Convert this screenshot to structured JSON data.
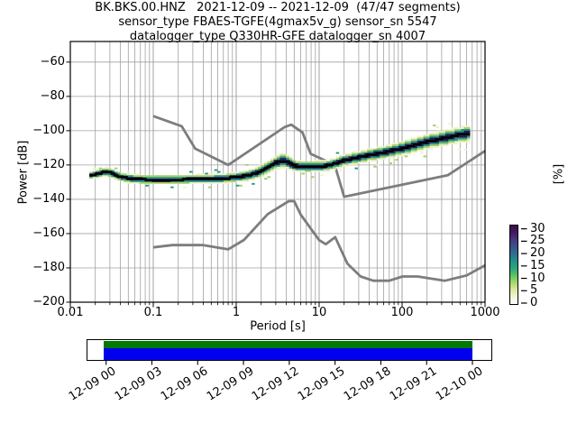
{
  "header": {
    "line1": "BK.BKS.00.HNZ   2021-12-09 -- 2021-12-09  (47/47 segments)",
    "line2": "sensor_type FBAES-TGFE(4gmax5v_g) sensor_sn 5547",
    "line3": "datalogger_type Q330HR-GFE datalogger_sn 4007"
  },
  "plot": {
    "xlabel": "Period [s]",
    "ylabel": "Power [dB]"
  },
  "colorbar": {
    "label": "[%]",
    "tick_values": [
      30,
      25,
      20,
      15,
      10,
      5,
      0
    ],
    "max_percent": 31.7,
    "gradient_bottom_to_top": [
      "#ffffff",
      "#f4f2d9",
      "#dce8a0",
      "#a5d96b",
      "#5cc362",
      "#2ba57c",
      "#21918c",
      "#2c6f8e",
      "#3a548b",
      "#453781",
      "#45195e",
      "#3c0b4e"
    ]
  },
  "timeline": {
    "labels": [
      "12-09 00",
      "12-09 03",
      "12-09 06",
      "12-09 09",
      "12-09 12",
      "12-09 15",
      "12-09 18",
      "12-09 21",
      "12-10 00"
    ],
    "coverage_color": "#007a00",
    "psd_color": "#0000ee"
  },
  "chart_data": {
    "type": "line",
    "title": "BK.BKS.00.HNZ 2021-12-09 -- 2021-12-09 (47/47 segments)",
    "xlabel": "Period [s]",
    "ylabel": "Power [dB]",
    "xscale": "log",
    "xlim": [
      0.01,
      1000
    ],
    "ylim": [
      -200,
      -48
    ],
    "grid": true,
    "grid_color": "#a0a0a0",
    "x_tick_values": [
      0.01,
      0.1,
      1,
      10,
      100,
      1000
    ],
    "x_tick_labels": [
      "0.01",
      "0.1",
      "1",
      "10",
      "100",
      "1000"
    ],
    "y_tick_values": [
      -60,
      -80,
      -100,
      -120,
      -140,
      -160,
      -180,
      -200
    ],
    "series": [
      {
        "name": "NHNM Peterson high-noise model",
        "color": "#7d7d7d",
        "points": [
          [
            0.1,
            -91.5
          ],
          [
            0.22,
            -97.4
          ],
          [
            0.32,
            -110.5
          ],
          [
            0.8,
            -120
          ],
          [
            3.8,
            -98
          ],
          [
            4.6,
            -96.5
          ],
          [
            6.3,
            -101
          ],
          [
            7.9,
            -113.5
          ],
          [
            15.4,
            -120
          ],
          [
            20,
            -138.5
          ],
          [
            354.8,
            -126
          ],
          [
            1000,
            -111.8
          ]
        ]
      },
      {
        "name": "NLNM Peterson low-noise model",
        "color": "#7d7d7d",
        "points": [
          [
            0.1,
            -168
          ],
          [
            0.17,
            -166.7
          ],
          [
            0.4,
            -166.7
          ],
          [
            0.8,
            -169.2
          ],
          [
            1.24,
            -163.7
          ],
          [
            2.4,
            -148.6
          ],
          [
            4.3,
            -141.1
          ],
          [
            5,
            -141.1
          ],
          [
            6,
            -149
          ],
          [
            10,
            -163.8
          ],
          [
            12,
            -166.2
          ],
          [
            15.6,
            -162.1
          ],
          [
            21.9,
            -177.5
          ],
          [
            31.6,
            -185
          ],
          [
            45,
            -187.5
          ],
          [
            70,
            -187.5
          ],
          [
            101,
            -185
          ],
          [
            154,
            -185
          ],
          [
            328,
            -187.5
          ],
          [
            600,
            -184.4
          ],
          [
            1000,
            -178.5
          ]
        ]
      },
      {
        "name": "PSD mode",
        "color": "#000000",
        "points": [
          [
            0.017,
            -126
          ],
          [
            0.021,
            -125.3
          ],
          [
            0.026,
            -124
          ],
          [
            0.031,
            -124.6
          ],
          [
            0.04,
            -126.8
          ],
          [
            0.05,
            -127.8
          ],
          [
            0.07,
            -128.4
          ],
          [
            0.1,
            -128.6
          ],
          [
            0.15,
            -128.6
          ],
          [
            0.22,
            -128.5
          ],
          [
            0.32,
            -128.3
          ],
          [
            0.5,
            -128.1
          ],
          [
            0.7,
            -127.9
          ],
          [
            1,
            -127.2
          ],
          [
            1.4,
            -126.1
          ],
          [
            1.8,
            -124.4
          ],
          [
            2.2,
            -122.4
          ],
          [
            2.6,
            -120.4
          ],
          [
            3,
            -118.7
          ],
          [
            3.4,
            -117.7
          ],
          [
            3.9,
            -117.7
          ],
          [
            4.4,
            -119
          ],
          [
            5,
            -120.4
          ],
          [
            6,
            -120.9
          ],
          [
            7.5,
            -121
          ],
          [
            9,
            -120.9
          ],
          [
            11,
            -120.7
          ],
          [
            13,
            -120.3
          ],
          [
            16,
            -118.9
          ],
          [
            20,
            -117.3
          ],
          [
            25,
            -116.3
          ],
          [
            32,
            -115.3
          ],
          [
            40,
            -114.3
          ],
          [
            50,
            -113.4
          ],
          [
            65,
            -112.4
          ],
          [
            80,
            -111.4
          ],
          [
            100,
            -110.3
          ],
          [
            130,
            -108.9
          ],
          [
            160,
            -107.7
          ],
          [
            200,
            -106.5
          ],
          [
            260,
            -105.2
          ],
          [
            320,
            -104.3
          ],
          [
            400,
            -103.3
          ],
          [
            500,
            -102.4
          ],
          [
            600,
            -101.8
          ],
          [
            700,
            -101.2
          ]
        ]
      }
    ],
    "band_halfwidth_db": [
      [
        0.017,
        2.2
      ],
      [
        0.03,
        2.8
      ],
      [
        0.05,
        2.8
      ],
      [
        0.5,
        2.8
      ],
      [
        1,
        3
      ],
      [
        1.8,
        3.6
      ],
      [
        2.6,
        4.2
      ],
      [
        3.4,
        4.5
      ],
      [
        4.4,
        4
      ],
      [
        6,
        3.4
      ],
      [
        13,
        3.4
      ],
      [
        20,
        3.6
      ],
      [
        50,
        4
      ],
      [
        100,
        4.4
      ],
      [
        200,
        4.6
      ],
      [
        400,
        4.8
      ],
      [
        700,
        5
      ]
    ],
    "band_layers": [
      {
        "scale": 1.0,
        "color": "#eef2cf"
      },
      {
        "scale": 0.75,
        "color": "#a3d06a"
      },
      {
        "scale": 0.55,
        "color": "#2a9482"
      },
      {
        "scale": 0.33,
        "color": "#241a50"
      }
    ],
    "mode_line_color": "#000000",
    "legend": false
  }
}
